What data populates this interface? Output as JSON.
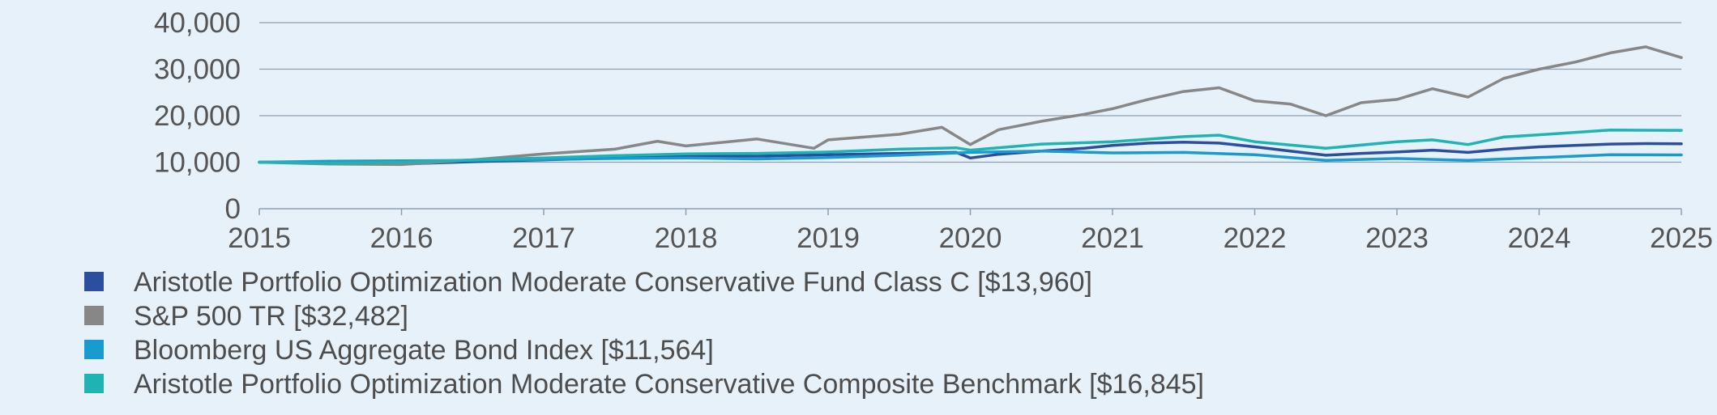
{
  "chart_data": {
    "type": "line",
    "xlim": [
      2015,
      2025
    ],
    "ylim": [
      0,
      40000
    ],
    "x_ticks": [
      "2015",
      "2016",
      "2017",
      "2018",
      "2019",
      "2020",
      "2021",
      "2022",
      "2023",
      "2024",
      "2025"
    ],
    "y_ticks": [
      "0",
      "10,000",
      "20,000",
      "30,000",
      "40,000"
    ],
    "grid": "horizontal",
    "legend_placement": "bottom",
    "series": [
      {
        "name": "Aristotle Portfolio Optimization Moderate Conservative Fund Class C [$13,960]",
        "color": "#2b4f9e",
        "x": [
          2015,
          2015.5,
          2016,
          2016.5,
          2017,
          2017.5,
          2018,
          2018.5,
          2019,
          2019.5,
          2019.9,
          2020,
          2020.2,
          2020.5,
          2020.8,
          2021,
          2021.25,
          2021.5,
          2021.75,
          2022,
          2022.25,
          2022.5,
          2022.75,
          2023,
          2023.25,
          2023.5,
          2023.75,
          2024,
          2024.25,
          2024.5,
          2024.75,
          2025
        ],
        "y": [
          10000,
          9900,
          9600,
          10100,
          10500,
          10900,
          11400,
          11300,
          11600,
          11900,
          12100,
          10900,
          11700,
          12400,
          13000,
          13600,
          14100,
          14300,
          14100,
          13300,
          12400,
          11500,
          11900,
          12200,
          12600,
          12100,
          12800,
          13300,
          13600,
          13900,
          14000,
          13960
        ]
      },
      {
        "name": "S&P 500 TR [$32,482]",
        "color": "#878787",
        "x": [
          2015,
          2015.5,
          2016,
          2016.5,
          2017,
          2017.5,
          2017.8,
          2018,
          2018.5,
          2018.9,
          2019,
          2019.5,
          2019.8,
          2020,
          2020.2,
          2020.5,
          2020.8,
          2021,
          2021.25,
          2021.5,
          2021.75,
          2022,
          2022.25,
          2022.5,
          2022.75,
          2023,
          2023.25,
          2023.5,
          2023.75,
          2024,
          2024.25,
          2024.5,
          2024.75,
          2025
        ],
        "y": [
          10000,
          9600,
          9500,
          10500,
          11800,
          12800,
          14500,
          13500,
          15000,
          13000,
          14800,
          16000,
          17500,
          13800,
          17000,
          18800,
          20300,
          21500,
          23500,
          25200,
          26000,
          23200,
          22500,
          20000,
          22800,
          23500,
          25800,
          24000,
          28000,
          30000,
          31500,
          33500,
          34800,
          32482
        ]
      },
      {
        "name": "Bloomberg US Aggregate Bond Index [$11,564]",
        "color": "#1a9bcf",
        "x": [
          2015,
          2015.5,
          2016,
          2016.5,
          2017,
          2017.5,
          2018,
          2018.5,
          2019,
          2019.5,
          2020,
          2020.5,
          2021,
          2021.5,
          2022,
          2022.5,
          2023,
          2023.5,
          2024,
          2024.5,
          2025
        ],
        "y": [
          10000,
          10200,
          10300,
          10400,
          10600,
          10800,
          10900,
          10700,
          11000,
          11500,
          12100,
          12400,
          12000,
          12100,
          11600,
          10400,
          10800,
          10400,
          11000,
          11600,
          11564
        ]
      },
      {
        "name": "Aristotle Portfolio Optimization Moderate Conservative Composite Benchmark [$16,845]",
        "color": "#20b3b3",
        "x": [
          2015,
          2015.5,
          2016,
          2016.5,
          2017,
          2017.5,
          2018,
          2018.5,
          2019,
          2019.5,
          2019.9,
          2020,
          2020.5,
          2021,
          2021.5,
          2021.75,
          2022,
          2022.5,
          2023,
          2023.25,
          2023.5,
          2023.75,
          2024,
          2024.5,
          2025
        ],
        "y": [
          10000,
          9800,
          10000,
          10500,
          10900,
          11400,
          11800,
          11900,
          12200,
          12800,
          13100,
          12600,
          13900,
          14400,
          15500,
          15800,
          14400,
          13000,
          14400,
          14800,
          13800,
          15400,
          15900,
          16900,
          16845
        ]
      }
    ]
  }
}
